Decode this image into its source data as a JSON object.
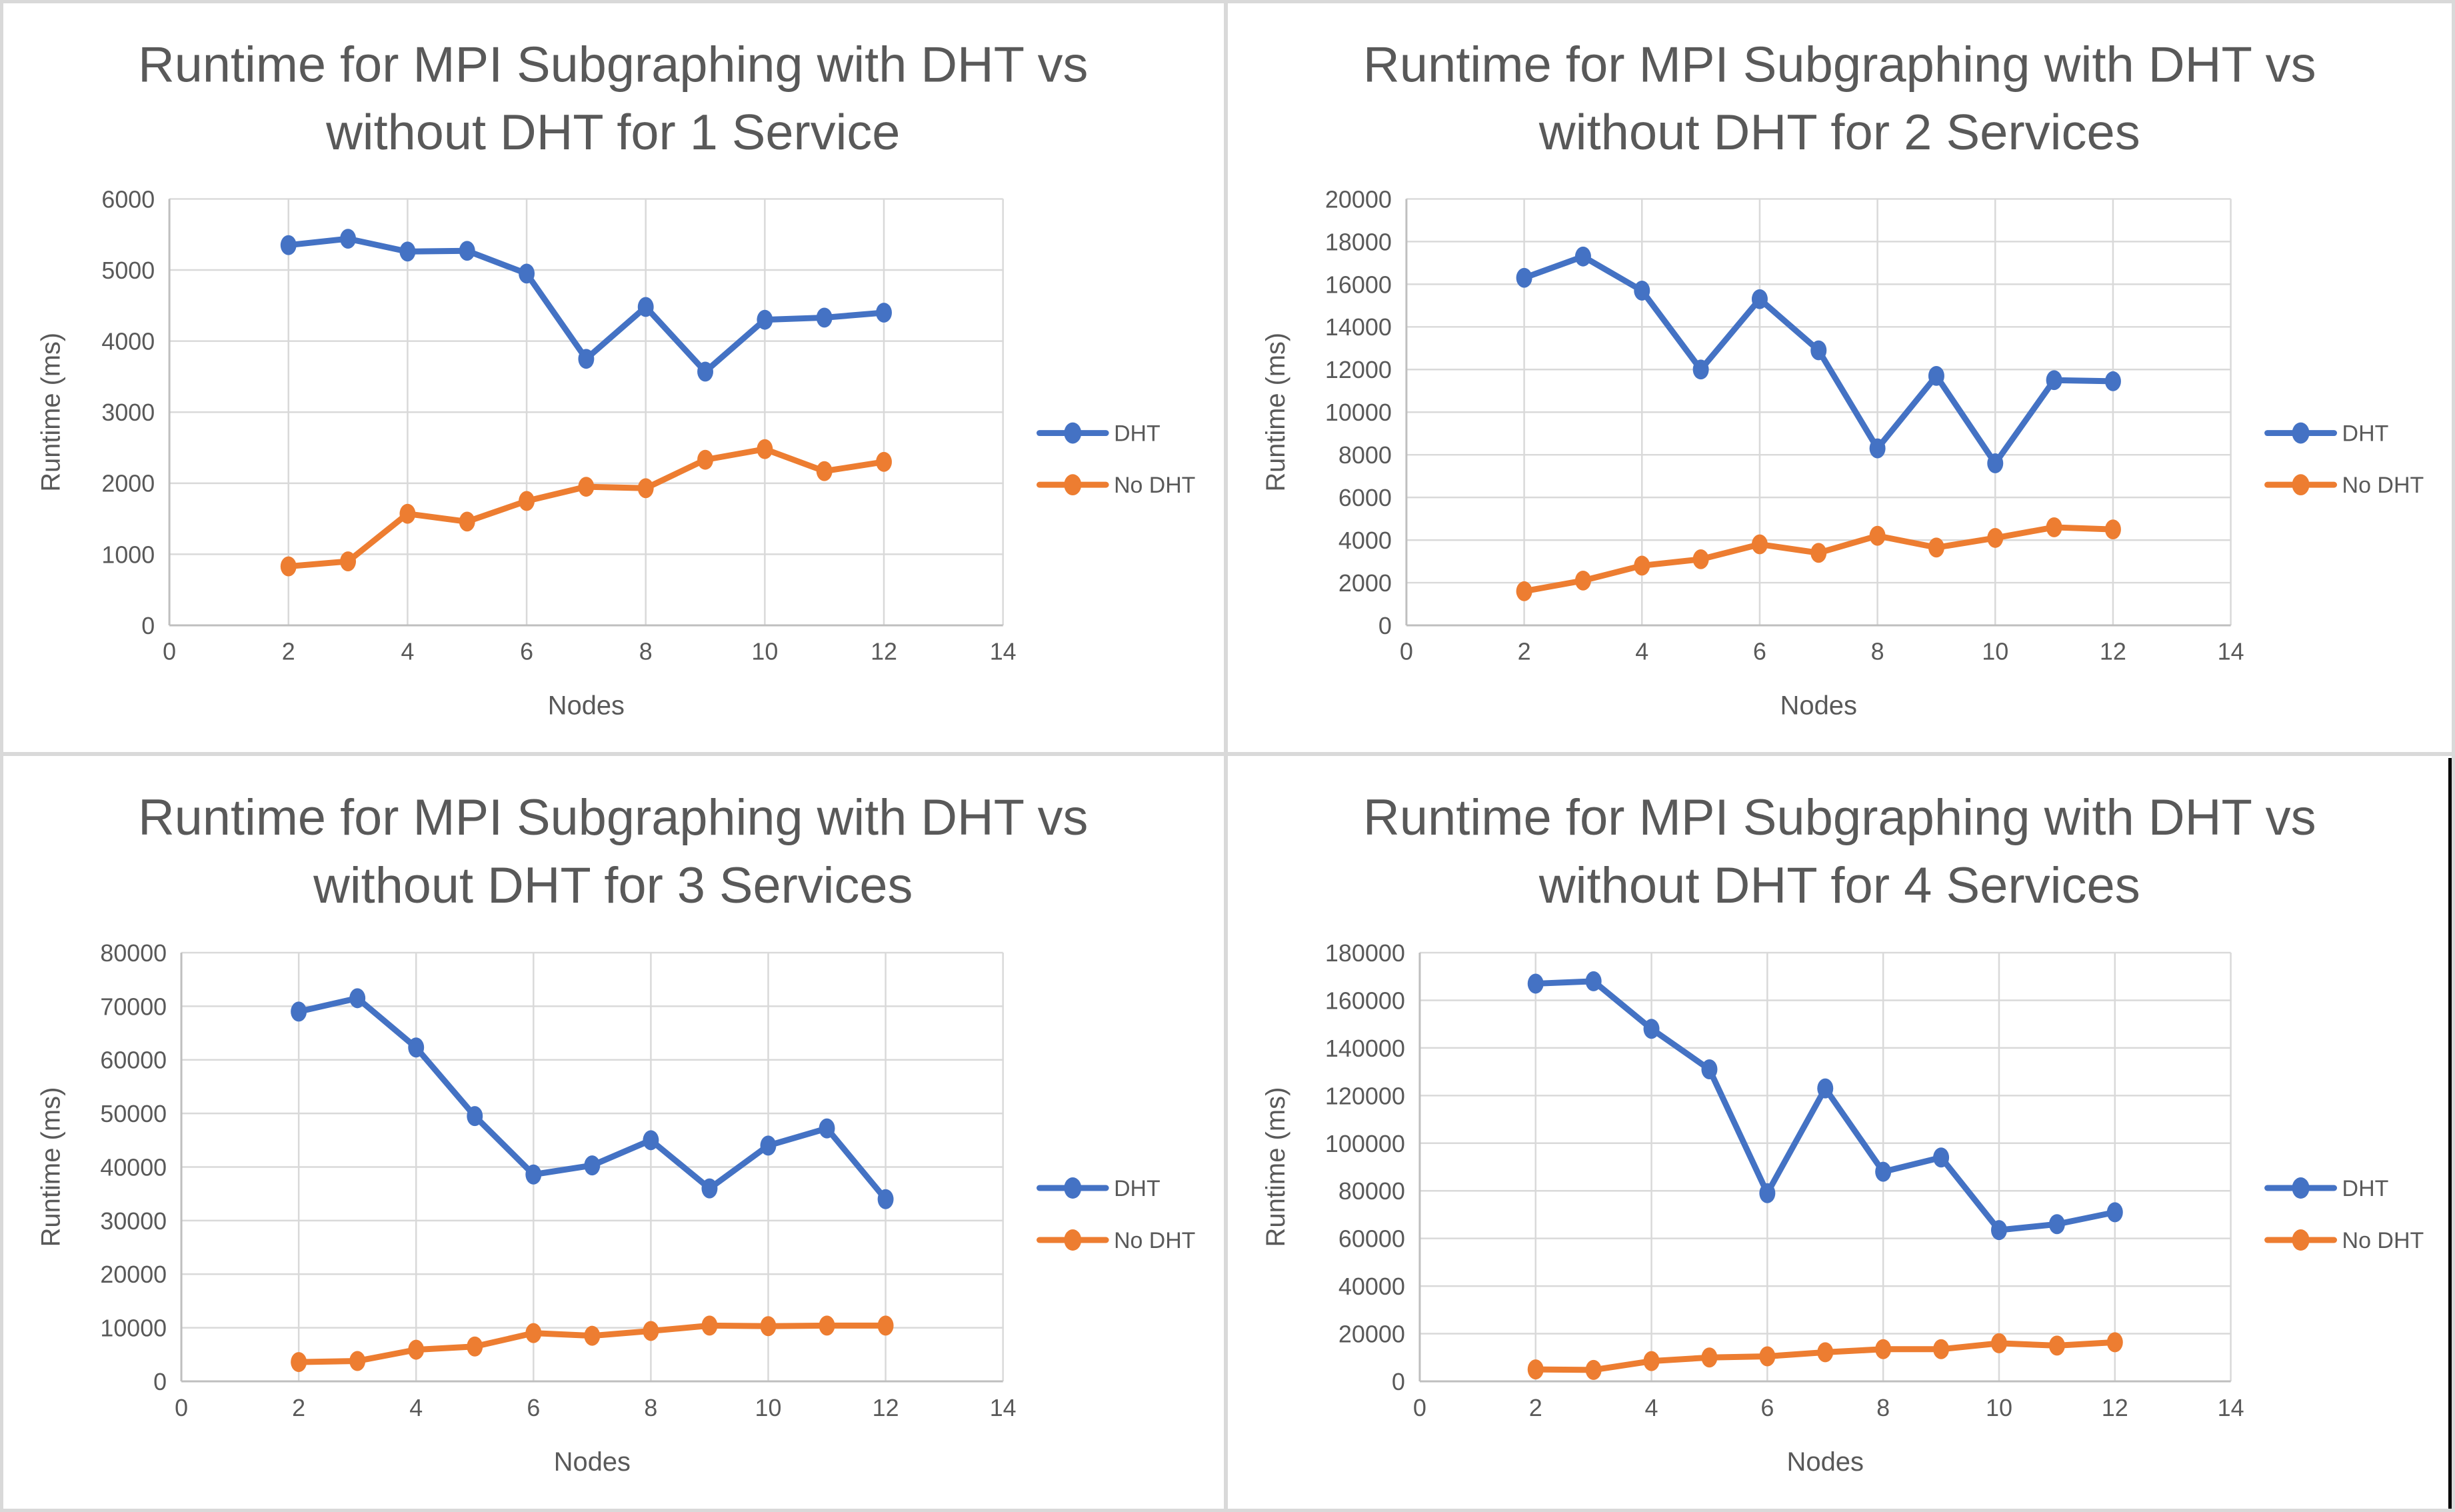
{
  "page": {
    "background": "#ffffff",
    "border_color": "#d9d9d9",
    "right_edge_bar_color": "#000000"
  },
  "colors": {
    "dht": "#4472C4",
    "no_dht": "#ED7D31",
    "gridline": "#D9D9D9",
    "axis_line": "#BFBFBF",
    "text": "#595959"
  },
  "legend": {
    "items": [
      {
        "label": "DHT",
        "color_key": "dht"
      },
      {
        "label": "No DHT",
        "color_key": "no_dht"
      }
    ]
  },
  "chart_data": [
    {
      "type": "line",
      "title_line1": "Runtime for MPI Subgraphing with DHT vs",
      "title_line2": "without DHT for 1 Service",
      "xlabel": "Nodes",
      "ylabel": "Runtime (ms)",
      "grid": true,
      "legend_position": "right",
      "xlim": [
        0,
        14
      ],
      "ylim": [
        0,
        6000
      ],
      "x_ticks": [
        0,
        2,
        4,
        6,
        8,
        10,
        12,
        14
      ],
      "y_ticks": [
        0,
        1000,
        2000,
        3000,
        4000,
        5000,
        6000
      ],
      "x": [
        2,
        3,
        4,
        5,
        6,
        7,
        8,
        9,
        10,
        11,
        12
      ],
      "series": [
        {
          "name": "DHT",
          "color_key": "dht",
          "values": [
            5350,
            5440,
            5260,
            5270,
            4950,
            3750,
            4480,
            3570,
            4300,
            4330,
            4400
          ]
        },
        {
          "name": "No DHT",
          "color_key": "no_dht",
          "values": [
            830,
            900,
            1570,
            1460,
            1750,
            1950,
            1930,
            2330,
            2480,
            2170,
            2300
          ]
        }
      ]
    },
    {
      "type": "line",
      "title_line1": "Runtime for MPI Subgraphing with DHT vs",
      "title_line2": "without DHT for 2 Services",
      "xlabel": "Nodes",
      "ylabel": "Runtime (ms)",
      "grid": true,
      "legend_position": "right",
      "xlim": [
        0,
        14
      ],
      "ylim": [
        0,
        20000
      ],
      "x_ticks": [
        0,
        2,
        4,
        6,
        8,
        10,
        12,
        14
      ],
      "y_ticks": [
        0,
        2000,
        4000,
        6000,
        8000,
        10000,
        12000,
        14000,
        16000,
        18000,
        20000
      ],
      "x": [
        2,
        3,
        4,
        5,
        6,
        7,
        8,
        9,
        10,
        11,
        12
      ],
      "series": [
        {
          "name": "DHT",
          "color_key": "dht",
          "values": [
            16300,
            17300,
            15700,
            12000,
            15300,
            12900,
            8300,
            11700,
            7600,
            11500,
            11450
          ]
        },
        {
          "name": "No DHT",
          "color_key": "no_dht",
          "values": [
            1600,
            2100,
            2800,
            3100,
            3800,
            3400,
            4200,
            3650,
            4100,
            4600,
            4500
          ]
        }
      ]
    },
    {
      "type": "line",
      "title_line1": "Runtime for MPI Subgraphing with DHT vs",
      "title_line2": "without DHT for 3 Services",
      "xlabel": "Nodes",
      "ylabel": "Runtime (ms)",
      "grid": true,
      "legend_position": "right",
      "xlim": [
        0,
        14
      ],
      "ylim": [
        0,
        80000
      ],
      "x_ticks": [
        0,
        2,
        4,
        6,
        8,
        10,
        12,
        14
      ],
      "y_ticks": [
        0,
        10000,
        20000,
        30000,
        40000,
        50000,
        60000,
        70000,
        80000
      ],
      "x": [
        2,
        3,
        4,
        5,
        6,
        7,
        8,
        9,
        10,
        11,
        12
      ],
      "series": [
        {
          "name": "DHT",
          "color_key": "dht",
          "values": [
            69000,
            71500,
            62300,
            49500,
            38600,
            40300,
            45000,
            36000,
            44000,
            47200,
            34000
          ]
        },
        {
          "name": "No DHT",
          "color_key": "no_dht",
          "values": [
            3600,
            3800,
            5900,
            6500,
            9000,
            8500,
            9400,
            10400,
            10300,
            10400,
            10400
          ]
        }
      ]
    },
    {
      "type": "line",
      "title_line1": "Runtime for MPI Subgraphing with DHT vs",
      "title_line2": "without DHT for 4 Services",
      "xlabel": "Nodes",
      "ylabel": "Runtime (ms)",
      "grid": true,
      "legend_position": "right",
      "xlim": [
        0,
        14
      ],
      "ylim": [
        0,
        180000
      ],
      "x_ticks": [
        0,
        2,
        4,
        6,
        8,
        10,
        12,
        14
      ],
      "y_ticks": [
        0,
        20000,
        40000,
        60000,
        80000,
        100000,
        120000,
        140000,
        160000,
        180000
      ],
      "x": [
        2,
        3,
        4,
        5,
        6,
        7,
        8,
        9,
        10,
        11,
        12
      ],
      "series": [
        {
          "name": "DHT",
          "color_key": "dht",
          "values": [
            167000,
            168000,
            148000,
            131000,
            79000,
            123000,
            88000,
            94000,
            63500,
            66000,
            71000
          ]
        },
        {
          "name": "No DHT",
          "color_key": "no_dht",
          "values": [
            5000,
            4800,
            8500,
            10000,
            10500,
            12200,
            13500,
            13500,
            16000,
            15000,
            16400
          ]
        }
      ]
    }
  ]
}
